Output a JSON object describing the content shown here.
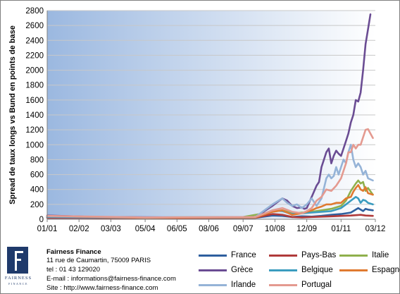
{
  "chart_data": {
    "type": "line",
    "ylabel": "Spread de taux longs vs Bund en points de base",
    "ylim": [
      0,
      2800
    ],
    "yticks": [
      0,
      200,
      400,
      600,
      800,
      1000,
      1200,
      1400,
      1600,
      1800,
      2000,
      2200,
      2400,
      2600,
      2800
    ],
    "xlim": [
      0,
      134
    ],
    "xtick_positions": [
      0,
      13,
      26,
      40,
      53,
      66,
      80,
      93,
      106,
      120,
      134
    ],
    "xtick_labels": [
      "01/01",
      "02/02",
      "03/03",
      "05/04",
      "06/05",
      "08/06",
      "09/07",
      "10/08",
      "12/09",
      "01/11",
      "03/12"
    ],
    "grid": "horizontal",
    "background": "gradient-blue-to-white",
    "legend_position": "bottom",
    "series": [
      {
        "name": "France",
        "color": "#2e5f9e",
        "points": [
          [
            0,
            30
          ],
          [
            20,
            20
          ],
          [
            60,
            15
          ],
          [
            85,
            20
          ],
          [
            92,
            50
          ],
          [
            96,
            45
          ],
          [
            100,
            30
          ],
          [
            104,
            40
          ],
          [
            108,
            35
          ],
          [
            112,
            45
          ],
          [
            116,
            60
          ],
          [
            120,
            70
          ],
          [
            124,
            90
          ],
          [
            127,
            150
          ],
          [
            128,
            130
          ],
          [
            129,
            110
          ],
          [
            130,
            140
          ],
          [
            131,
            130
          ],
          [
            133,
            120
          ]
        ]
      },
      {
        "name": "Pays-Bas",
        "color": "#b03a3a",
        "points": [
          [
            0,
            20
          ],
          [
            40,
            15
          ],
          [
            85,
            20
          ],
          [
            92,
            70
          ],
          [
            96,
            60
          ],
          [
            100,
            30
          ],
          [
            104,
            25
          ],
          [
            108,
            30
          ],
          [
            112,
            35
          ],
          [
            116,
            40
          ],
          [
            120,
            45
          ],
          [
            124,
            50
          ],
          [
            128,
            60
          ],
          [
            130,
            50
          ],
          [
            133,
            45
          ]
        ]
      },
      {
        "name": "Italie",
        "color": "#8fb04c",
        "points": [
          [
            0,
            40
          ],
          [
            40,
            25
          ],
          [
            80,
            30
          ],
          [
            92,
            100
          ],
          [
            96,
            120
          ],
          [
            100,
            80
          ],
          [
            104,
            90
          ],
          [
            108,
            100
          ],
          [
            112,
            120
          ],
          [
            116,
            140
          ],
          [
            120,
            180
          ],
          [
            122,
            250
          ],
          [
            124,
            380
          ],
          [
            126,
            480
          ],
          [
            127,
            520
          ],
          [
            128,
            480
          ],
          [
            129,
            500
          ],
          [
            130,
            380
          ],
          [
            131,
            420
          ],
          [
            133,
            330
          ]
        ]
      },
      {
        "name": "Grèce",
        "color": "#6a4c93",
        "points": [
          [
            0,
            50
          ],
          [
            20,
            30
          ],
          [
            60,
            25
          ],
          [
            85,
            30
          ],
          [
            92,
            180
          ],
          [
            96,
            280
          ],
          [
            98,
            250
          ],
          [
            100,
            180
          ],
          [
            102,
            150
          ],
          [
            104,
            160
          ],
          [
            105,
            140
          ],
          [
            106,
            150
          ],
          [
            108,
            300
          ],
          [
            110,
            450
          ],
          [
            111,
            500
          ],
          [
            112,
            700
          ],
          [
            113,
            800
          ],
          [
            114,
            900
          ],
          [
            115,
            950
          ],
          [
            116,
            750
          ],
          [
            117,
            850
          ],
          [
            118,
            920
          ],
          [
            119,
            880
          ],
          [
            120,
            850
          ],
          [
            121,
            950
          ],
          [
            122,
            1050
          ],
          [
            123,
            1150
          ],
          [
            124,
            1300
          ],
          [
            125,
            1400
          ],
          [
            126,
            1600
          ],
          [
            127,
            1580
          ],
          [
            128,
            1700
          ],
          [
            129,
            2000
          ],
          [
            130,
            2350
          ],
          [
            131,
            2550
          ],
          [
            132,
            2750
          ]
        ]
      },
      {
        "name": "Belgique",
        "color": "#3b9cbf",
        "points": [
          [
            0,
            30
          ],
          [
            40,
            20
          ],
          [
            85,
            25
          ],
          [
            92,
            120
          ],
          [
            96,
            110
          ],
          [
            100,
            70
          ],
          [
            104,
            80
          ],
          [
            108,
            90
          ],
          [
            112,
            100
          ],
          [
            116,
            110
          ],
          [
            118,
            130
          ],
          [
            120,
            150
          ],
          [
            122,
            200
          ],
          [
            124,
            250
          ],
          [
            126,
            300
          ],
          [
            127,
            280
          ],
          [
            128,
            220
          ],
          [
            129,
            260
          ],
          [
            130,
            250
          ],
          [
            131,
            220
          ],
          [
            133,
            200
          ]
        ]
      },
      {
        "name": "Espagne",
        "color": "#e07a30",
        "points": [
          [
            0,
            40
          ],
          [
            40,
            20
          ],
          [
            85,
            25
          ],
          [
            92,
            100
          ],
          [
            96,
            120
          ],
          [
            100,
            60
          ],
          [
            104,
            80
          ],
          [
            108,
            120
          ],
          [
            110,
            150
          ],
          [
            112,
            170
          ],
          [
            114,
            200
          ],
          [
            116,
            200
          ],
          [
            118,
            220
          ],
          [
            120,
            220
          ],
          [
            122,
            280
          ],
          [
            124,
            300
          ],
          [
            125,
            370
          ],
          [
            126,
            420
          ],
          [
            127,
            460
          ],
          [
            128,
            400
          ],
          [
            129,
            380
          ],
          [
            130,
            430
          ],
          [
            131,
            350
          ],
          [
            133,
            330
          ]
        ]
      },
      {
        "name": "Irlande",
        "color": "#95b3d7",
        "points": [
          [
            0,
            40
          ],
          [
            40,
            25
          ],
          [
            85,
            30
          ],
          [
            92,
            200
          ],
          [
            96,
            280
          ],
          [
            98,
            220
          ],
          [
            100,
            180
          ],
          [
            102,
            200
          ],
          [
            104,
            150
          ],
          [
            106,
            200
          ],
          [
            108,
            280
          ],
          [
            110,
            180
          ],
          [
            112,
            280
          ],
          [
            114,
            550
          ],
          [
            115,
            600
          ],
          [
            116,
            550
          ],
          [
            117,
            580
          ],
          [
            118,
            700
          ],
          [
            119,
            600
          ],
          [
            120,
            700
          ],
          [
            121,
            800
          ],
          [
            122,
            750
          ],
          [
            123,
            900
          ],
          [
            124,
            1000
          ],
          [
            125,
            800
          ],
          [
            126,
            700
          ],
          [
            127,
            750
          ],
          [
            128,
            700
          ],
          [
            129,
            600
          ],
          [
            130,
            650
          ],
          [
            131,
            550
          ],
          [
            133,
            520
          ]
        ]
      },
      {
        "name": "Portugal",
        "color": "#e49a90",
        "points": [
          [
            0,
            45
          ],
          [
            40,
            25
          ],
          [
            85,
            30
          ],
          [
            92,
            120
          ],
          [
            96,
            150
          ],
          [
            100,
            100
          ],
          [
            104,
            80
          ],
          [
            106,
            110
          ],
          [
            108,
            150
          ],
          [
            110,
            250
          ],
          [
            112,
            300
          ],
          [
            113,
            350
          ],
          [
            114,
            400
          ],
          [
            116,
            380
          ],
          [
            118,
            450
          ],
          [
            120,
            550
          ],
          [
            122,
            750
          ],
          [
            123,
            900
          ],
          [
            124,
            900
          ],
          [
            125,
            1000
          ],
          [
            126,
            950
          ],
          [
            127,
            1000
          ],
          [
            128,
            1000
          ],
          [
            129,
            1100
          ],
          [
            130,
            1200
          ],
          [
            131,
            1210
          ],
          [
            132,
            1150
          ],
          [
            133,
            1090
          ]
        ]
      }
    ]
  },
  "footer": {
    "company": "Fairness Finance",
    "address": "11 rue de Caumartin, 75009 PARIS",
    "tel": "tel : 01 43 129020",
    "email": "E-mail : informations@fairness-finance.com",
    "site": "Site : http://www.fairness-finance.com",
    "logo_text": "FAIRNESS",
    "logo_sub": "FINANCE"
  }
}
